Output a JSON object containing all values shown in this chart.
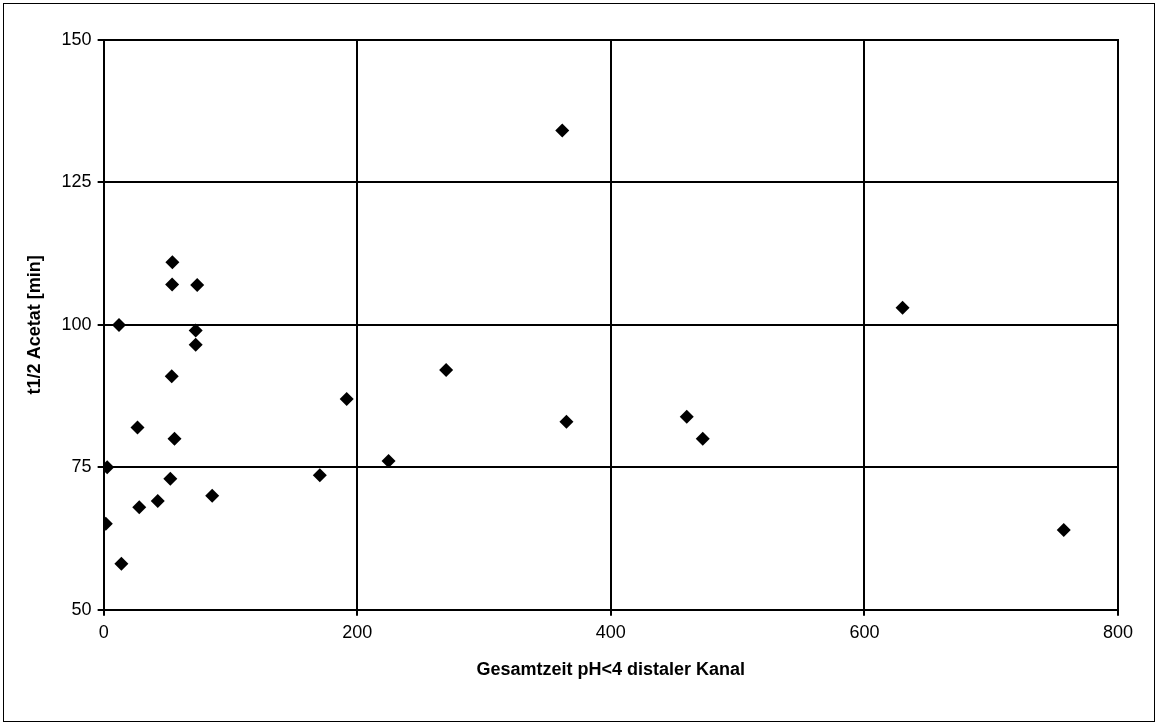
{
  "chart_data": {
    "type": "scatter",
    "xlabel": "Gesamtzeit pH<4 distaler Kanal",
    "ylabel": "t1/2 Acetat [min]",
    "x": [
      1.7,
      2.8,
      12.1,
      14.0,
      26.7,
      28.1,
      42.7,
      54.2,
      54.0,
      53.7,
      52.6,
      55.9,
      73.8,
      72.6,
      72.6,
      85.6,
      170.5,
      191.7,
      224.7,
      270.1,
      361.7,
      365.0,
      459.9,
      472.5,
      630.1,
      757.2
    ],
    "series": [
      {
        "color": "#000000",
        "values": [
          65.1,
          75.0,
          100.0,
          58.1,
          82.0,
          68.0,
          69.1,
          111.0,
          107.1,
          91.0,
          73.0,
          80.0,
          107.0,
          99.0,
          96.5,
          70.0,
          73.6,
          87.0,
          76.1,
          92.1,
          134.1,
          83.0,
          83.9,
          80.0,
          103.0,
          64.0
        ]
      }
    ],
    "xlim": [
      0,
      800
    ],
    "xticks": [
      0,
      200,
      400,
      600,
      800
    ],
    "ylim": [
      50,
      150
    ],
    "yticks": [
      50,
      75,
      100,
      125,
      150
    ],
    "grid": true,
    "legend": false,
    "marker": "diamond"
  }
}
